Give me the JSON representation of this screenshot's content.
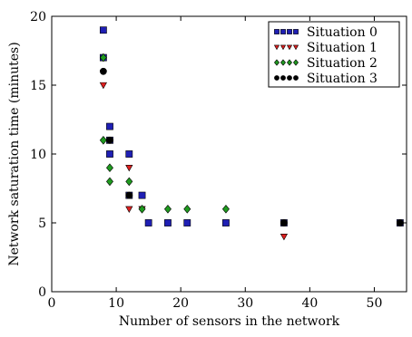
{
  "chart_data": {
    "type": "scatter",
    "xlabel": "Number of sensors in the network",
    "ylabel": "Network saturation time (minutes)",
    "xlim": [
      0,
      55
    ],
    "ylim": [
      0,
      20
    ],
    "xticks": [
      0,
      10,
      20,
      30,
      40,
      50
    ],
    "yticks": [
      0,
      5,
      10,
      15,
      20
    ],
    "grid": false,
    "legend_position": "top-right",
    "series": [
      {
        "name": "Situation 0",
        "marker": "square",
        "color": "#1f1fb4",
        "points": [
          [
            8,
            19
          ],
          [
            8,
            17
          ],
          [
            9,
            12
          ],
          [
            9,
            11
          ],
          [
            9,
            10
          ],
          [
            12,
            10
          ],
          [
            12,
            7
          ],
          [
            14,
            7
          ],
          [
            15,
            5
          ],
          [
            18,
            5
          ],
          [
            21,
            5
          ],
          [
            27,
            5
          ],
          [
            36,
            5
          ],
          [
            54,
            5
          ]
        ]
      },
      {
        "name": "Situation 1",
        "marker": "triangle-down",
        "color": "#e02020",
        "points": [
          [
            8,
            15
          ],
          [
            12,
            9
          ],
          [
            12,
            6
          ],
          [
            14,
            6
          ],
          [
            36,
            4
          ]
        ]
      },
      {
        "name": "Situation 2",
        "marker": "diamond",
        "color": "#1f9a1f",
        "points": [
          [
            8,
            17
          ],
          [
            8,
            11
          ],
          [
            9,
            9
          ],
          [
            9,
            8
          ],
          [
            12,
            8
          ],
          [
            14,
            6
          ],
          [
            18,
            6
          ],
          [
            21,
            6
          ],
          [
            27,
            6
          ]
        ]
      },
      {
        "name": "Situation 3",
        "marker": "circle",
        "color": "#000000",
        "points": [
          [
            8,
            16
          ],
          [
            9,
            11
          ],
          [
            12,
            7
          ],
          [
            36,
            5
          ],
          [
            54,
            5
          ]
        ]
      }
    ]
  }
}
